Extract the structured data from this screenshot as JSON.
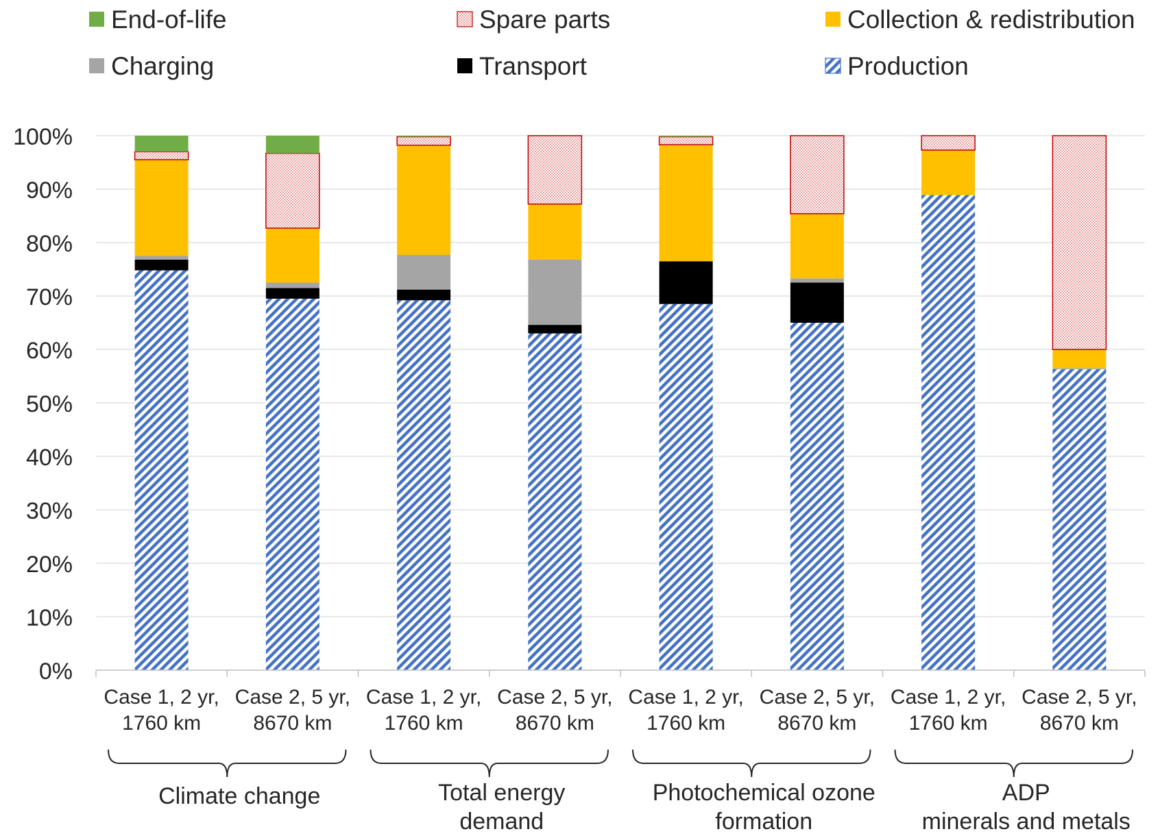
{
  "chart_data": {
    "type": "bar",
    "stacked": true,
    "title": "",
    "xlabel": "",
    "ylabel": "",
    "ylim": [
      0,
      100
    ],
    "y_ticks": [
      "0%",
      "10%",
      "20%",
      "30%",
      "40%",
      "50%",
      "60%",
      "70%",
      "80%",
      "90%",
      "100%"
    ],
    "grid": true,
    "legend_position": "top",
    "legend": [
      {
        "name": "End-of-life",
        "pattern": "solid",
        "color": "#70AD47"
      },
      {
        "name": "Spare parts",
        "pattern": "dots",
        "color": "#E8A0A0",
        "edge": "#C00000"
      },
      {
        "name": "Collection & redistribution",
        "pattern": "solid",
        "color": "#FFC000"
      },
      {
        "name": "Charging",
        "pattern": "solid",
        "color": "#A5A5A5"
      },
      {
        "name": "Transport",
        "pattern": "solid",
        "color": "#000000"
      },
      {
        "name": "Production",
        "pattern": "diagonal-stripes",
        "color": "#4472C4"
      }
    ],
    "categories": [
      [
        "Case 1, 2 yr,",
        "1760 km"
      ],
      [
        "Case 2, 5 yr,",
        "8670 km"
      ],
      [
        "Case 1, 2 yr,",
        "1760 km"
      ],
      [
        "Case 2, 5 yr,",
        "8670 km"
      ],
      [
        "Case 1, 2 yr,",
        "1760 km"
      ],
      [
        "Case 2, 5 yr,",
        "8670 km"
      ],
      [
        "Case 1, 2 yr,",
        "1760 km"
      ],
      [
        "Case 2, 5 yr,",
        "8670 km"
      ]
    ],
    "groups": [
      {
        "label": [
          "Climate change"
        ],
        "span": [
          0,
          1
        ]
      },
      {
        "label": [
          "Total energy",
          "demand"
        ],
        "span": [
          2,
          3
        ]
      },
      {
        "label": [
          "Photochemical ozone",
          "formation"
        ],
        "span": [
          4,
          5
        ]
      },
      {
        "label": [
          "ADP",
          "minerals and metals"
        ],
        "span": [
          6,
          7
        ]
      }
    ],
    "series": [
      {
        "name": "Production",
        "values": [
          74.8,
          69.5,
          69.2,
          63.0,
          68.5,
          65.0,
          88.9,
          56.3
        ]
      },
      {
        "name": "Transport",
        "values": [
          2.0,
          2.0,
          2.0,
          1.6,
          8.0,
          7.5,
          0.0,
          0.0
        ]
      },
      {
        "name": "Charging",
        "values": [
          0.7,
          1.0,
          6.5,
          12.2,
          0.0,
          0.8,
          0.0,
          0.2
        ]
      },
      {
        "name": "Collection & redistribution",
        "values": [
          18.0,
          10.2,
          20.5,
          10.4,
          21.8,
          12.1,
          8.4,
          3.5
        ]
      },
      {
        "name": "Spare parts",
        "values": [
          1.5,
          14.0,
          1.6,
          12.8,
          1.5,
          14.6,
          2.7,
          40.0
        ]
      },
      {
        "name": "End-of-life",
        "values": [
          3.0,
          3.3,
          0.2,
          0.0,
          0.2,
          0.0,
          0.0,
          0.0
        ]
      }
    ]
  }
}
